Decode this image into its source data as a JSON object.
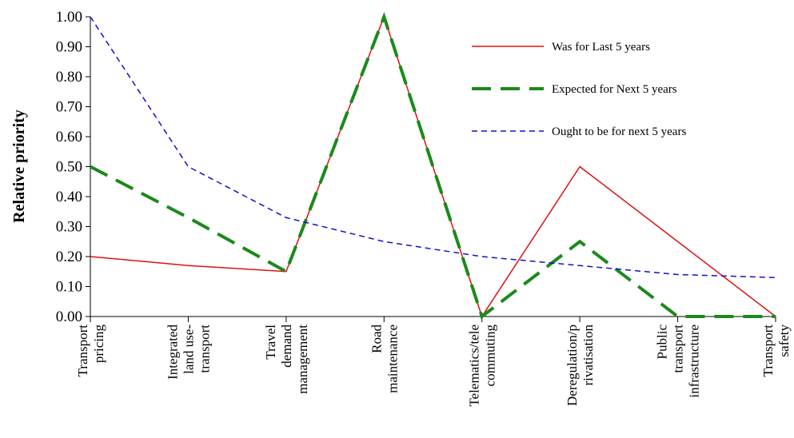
{
  "chart_data": {
    "type": "line",
    "y_label": "Relative priority",
    "categories": [
      [
        "Transport",
        "pricing"
      ],
      [
        "Integrated",
        "land use-",
        "transport"
      ],
      [
        "Travel",
        "demand",
        "management"
      ],
      [
        "Road",
        "maintenance"
      ],
      [
        "Telematics/tele",
        "commuting"
      ],
      [
        "Deregulation/p",
        "rivatisation"
      ],
      [
        "Public",
        "transport",
        "infrastructure"
      ],
      [
        "Transport",
        "safety"
      ]
    ],
    "series": [
      {
        "name": "Was for Last 5 years",
        "color": "#dd1111",
        "dash": "none",
        "width": 1.5,
        "values": [
          0.2,
          0.17,
          0.15,
          1.0,
          0.0,
          0.5,
          0.25,
          0.0
        ]
      },
      {
        "name": "Expected for Next 5 years",
        "color": "#1a8a1a",
        "dash": "24 12",
        "width": 4,
        "values": [
          0.5,
          0.33,
          0.15,
          1.0,
          0.0,
          0.25,
          0.0,
          0.0
        ]
      },
      {
        "name": "Ought to be for next 5 years",
        "color": "#1111cc",
        "dash": "7 5",
        "width": 1.5,
        "values": [
          1.0,
          0.5,
          0.33,
          0.25,
          0.2,
          0.17,
          0.14,
          0.13
        ]
      }
    ],
    "ylim": [
      0,
      1
    ],
    "yticks": [
      {
        "value": 0,
        "label": "0.00"
      },
      {
        "value": 0.1,
        "label": "0.10"
      },
      {
        "value": 0.2,
        "label": "0.20"
      },
      {
        "value": 0.3,
        "label": "0.30"
      },
      {
        "value": 0.4,
        "label": "0.40"
      },
      {
        "value": 0.5,
        "label": "0.50"
      },
      {
        "value": 0.6,
        "label": "0.60"
      },
      {
        "value": 0.7,
        "label": "0.70"
      },
      {
        "value": 0.8,
        "label": "0.80"
      },
      {
        "value": 0.9,
        "label": "0.90"
      },
      {
        "value": 1,
        "label": "1.00"
      }
    ],
    "grid": false
  }
}
